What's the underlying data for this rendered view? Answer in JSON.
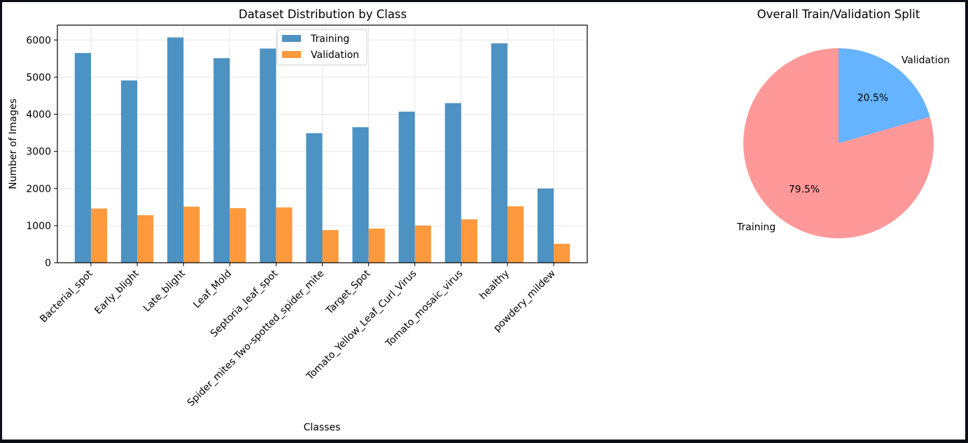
{
  "colors": {
    "training": "#4c92c3",
    "validation": "#ff993e",
    "pie_training": "#ff9999",
    "pie_validation": "#66b3ff",
    "grid": "#e6e6e6",
    "frame": "#0d1117"
  },
  "chart_data": [
    {
      "type": "bar",
      "title": "Dataset Distribution by Class",
      "xlabel": "Classes",
      "ylabel": "Number of Images",
      "ylim": [
        0,
        6400
      ],
      "yticks": [
        0,
        1000,
        2000,
        3000,
        4000,
        5000,
        6000
      ],
      "grid": true,
      "legend_position": "top-center",
      "categories": [
        "Bacterial_spot",
        "Early_blight",
        "Late_blight",
        "Leaf_Mold",
        "Septoria_leaf_spot",
        "Spider_mites Two-spotted_spider_mite",
        "Target_Spot",
        "Tomato_Yellow_Leaf_Curl_Virus",
        "Tomato_mosaic_virus",
        "healthy",
        "powdery_mildew"
      ],
      "series": [
        {
          "name": "Training",
          "values": [
            5650,
            4910,
            6070,
            5510,
            5770,
            3490,
            3650,
            4070,
            4300,
            5910,
            2000
          ]
        },
        {
          "name": "Validation",
          "values": [
            1460,
            1280,
            1510,
            1470,
            1490,
            880,
            920,
            1000,
            1170,
            1520,
            510
          ]
        }
      ]
    },
    {
      "type": "pie",
      "title": "Overall Train/Validation Split",
      "slices": [
        {
          "label": "Training",
          "value": 79.5,
          "pct_label": "79.5%"
        },
        {
          "label": "Validation",
          "value": 20.5,
          "pct_label": "20.5%"
        }
      ]
    }
  ]
}
